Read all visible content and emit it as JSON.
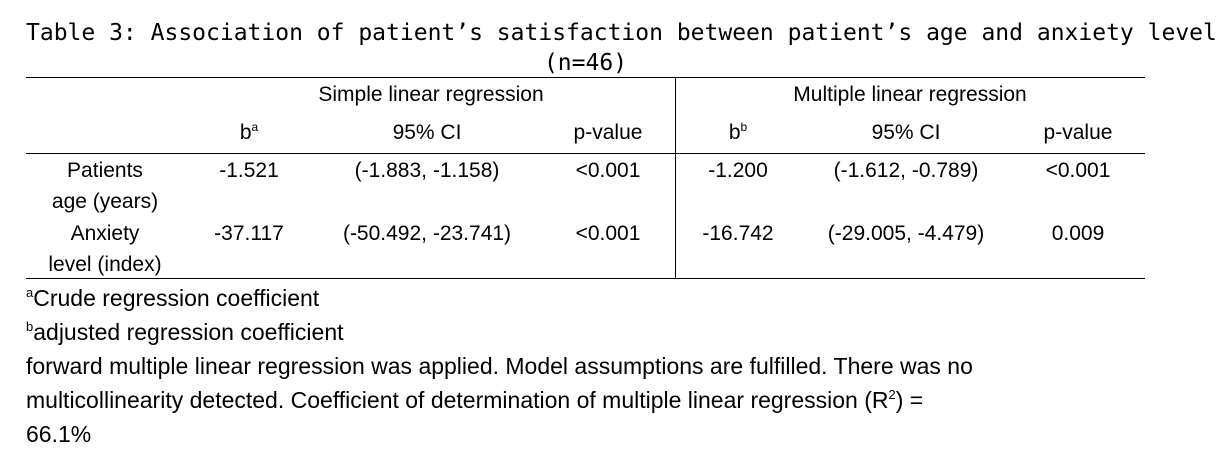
{
  "title": {
    "line1": "Table 3: Association of patient’s satisfaction between patient’s age and anxiety level",
    "line2": "(n=46)"
  },
  "groups": {
    "simple": "Simple linear regression",
    "multiple": "Multiple linear regression"
  },
  "columns": {
    "b_simple": "b",
    "b_simple_sup": "a",
    "ci_simple": "95% CI",
    "p_simple": "p-value",
    "b_multiple": "b",
    "b_multiple_sup": "b",
    "ci_multiple": "95% CI",
    "p_multiple": "p-value"
  },
  "rows": [
    {
      "label_line1": "Patients",
      "label_line2": "age (years)",
      "b_simple": "-1.521",
      "ci_simple": "(-1.883, -1.158)",
      "p_simple": "<0.001",
      "b_multiple": "-1.200",
      "ci_multiple": "(-1.612, -0.789)",
      "p_multiple": "<0.001"
    },
    {
      "label_line1": "Anxiety",
      "label_line2": "level (index)",
      "b_simple": "-37.117",
      "ci_simple": "(-50.492, -23.741)",
      "p_simple": "<0.001",
      "b_multiple": "-16.742",
      "ci_multiple": "(-29.005, -4.479)",
      "p_multiple": "0.009"
    }
  ],
  "footnotes": {
    "a_sup": "a",
    "a_text": "Crude regression coefficient",
    "b_sup": "b",
    "b_text": "adjusted regression coefficient",
    "note_line1": "forward multiple linear regression was applied. Model assumptions are fulfilled. There was no",
    "note_line2_pre": "multicollinearity detected. Coefficient of determination of multiple linear regression (R",
    "note_line2_sup": "2",
    "note_line2_post": ") =",
    "note_line3": "66.1%"
  }
}
